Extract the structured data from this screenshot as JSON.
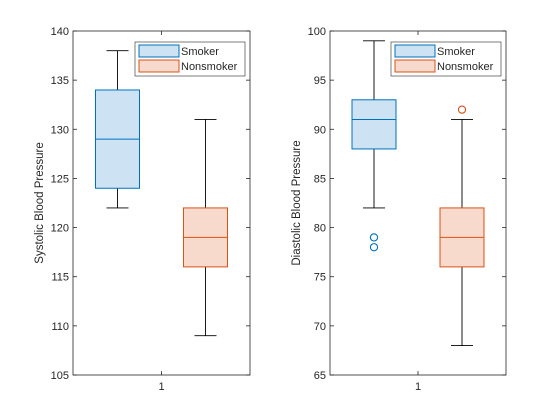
{
  "colors": {
    "smoker_edge": "#0072BD",
    "smoker_fill": "#CDE3F4",
    "nonsmoker_edge": "#D95319",
    "nonsmoker_fill": "#F8DACC",
    "whisker": "#000000",
    "axis": "#262626"
  },
  "legend_labels": [
    "Smoker",
    "Nonsmoker"
  ],
  "chart_data": [
    {
      "type": "box",
      "ylabel": "Systolic Blood Pressure",
      "xtick_label": "1",
      "ylim": [
        105,
        140
      ],
      "yticks": [
        105,
        110,
        115,
        120,
        125,
        130,
        135,
        140
      ],
      "grid": false,
      "legend_position": "top-right",
      "series": [
        {
          "name": "Smoker",
          "q1": 124,
          "median": 129,
          "q3": 134,
          "whisker_low": 122,
          "whisker_high": 138,
          "outliers": []
        },
        {
          "name": "Nonsmoker",
          "q1": 116,
          "median": 119,
          "q3": 122,
          "whisker_low": 109,
          "whisker_high": 131,
          "outliers": []
        }
      ]
    },
    {
      "type": "box",
      "ylabel": "Diastolic Blood Pressure",
      "xtick_label": "1",
      "ylim": [
        65,
        100
      ],
      "yticks": [
        65,
        70,
        75,
        80,
        85,
        90,
        95,
        100
      ],
      "grid": false,
      "legend_position": "top-right",
      "series": [
        {
          "name": "Smoker",
          "q1": 88,
          "median": 91,
          "q3": 93,
          "whisker_low": 82,
          "whisker_high": 99,
          "outliers": [
            79,
            78
          ]
        },
        {
          "name": "Nonsmoker",
          "q1": 76,
          "median": 79,
          "q3": 82,
          "whisker_low": 68,
          "whisker_high": 91,
          "outliers": [
            92
          ]
        }
      ]
    }
  ]
}
